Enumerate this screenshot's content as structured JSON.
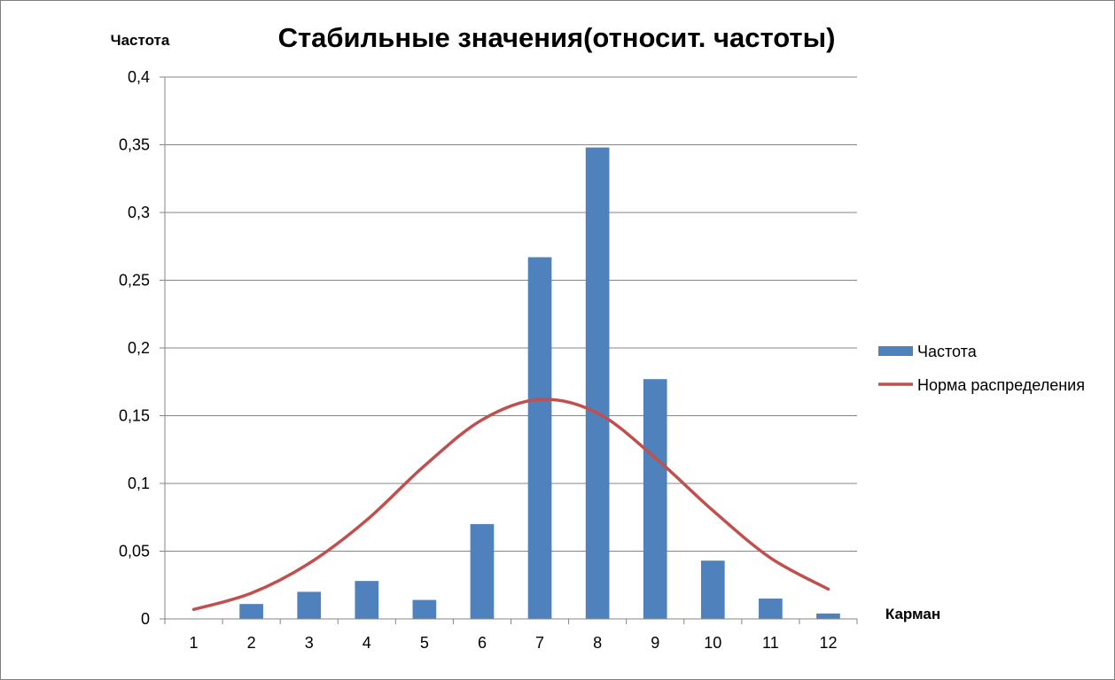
{
  "chart_data": {
    "type": "bar",
    "title": "Стабильные значения(относит. частоты)",
    "ylabel": "Частота",
    "xlabel": "Карман",
    "categories": [
      "1",
      "2",
      "3",
      "4",
      "5",
      "6",
      "7",
      "8",
      "9",
      "10",
      "11",
      "12"
    ],
    "ylim": [
      0,
      0.4
    ],
    "yticks": [
      0,
      0.05,
      0.1,
      0.15,
      0.2,
      0.25,
      0.3,
      0.35,
      0.4
    ],
    "ytick_labels": [
      "0",
      "0,05",
      "0,1",
      "0,15",
      "0,2",
      "0,25",
      "0,3",
      "0,35",
      "0,4"
    ],
    "grid": true,
    "legend_position": "right",
    "series": [
      {
        "name": "Частота",
        "kind": "bar",
        "color": "#4f81bd",
        "values": [
          0,
          0.011,
          0.02,
          0.028,
          0.014,
          0.07,
          0.267,
          0.348,
          0.177,
          0.043,
          0.015,
          0.004
        ]
      },
      {
        "name": "Норма распределения",
        "kind": "line",
        "color": "#c0504d",
        "values": [
          0.007,
          0.019,
          0.041,
          0.073,
          0.113,
          0.147,
          0.162,
          0.152,
          0.119,
          0.08,
          0.045,
          0.022
        ]
      }
    ]
  }
}
